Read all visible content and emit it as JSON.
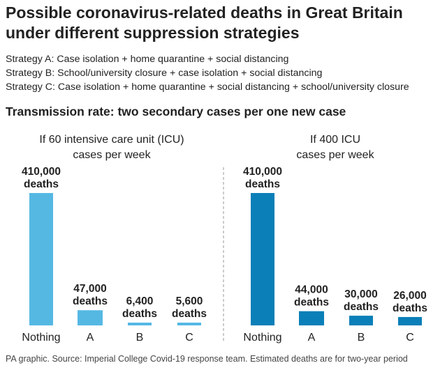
{
  "title_line1": "Possible coronavirus-related deaths in Great Britain",
  "title_line2": "under different suppression strategies",
  "strategies": [
    "Strategy A: Case isolation + home quarantine + social distancing",
    "Strategy B: School/university closure + case isolation + social distancing",
    "Strategy C: Case isolation + home quarantine + social distancing + school/university closure"
  ],
  "subtitle": "Transmission rate: two secondary cases per one new case",
  "footer": "PA graphic. Source: Imperial College Covid-19 response team. Estimated deaths are for two-year period",
  "chart_data": [
    {
      "type": "bar",
      "title_lines": [
        "If 60 intensive care unit (ICU)",
        "cases per week"
      ],
      "categories": [
        "Nothing",
        "A",
        "B",
        "C"
      ],
      "values": [
        410000,
        47000,
        6400,
        5600
      ],
      "value_labels": [
        "410,000",
        "47,000",
        "6,400",
        "5,600"
      ],
      "unit_label": "deaths",
      "color": "#55b8e3",
      "ylim": [
        0,
        410000
      ]
    },
    {
      "type": "bar",
      "title_lines": [
        "If 400 ICU",
        "cases per week"
      ],
      "categories": [
        "Nothing",
        "A",
        "B",
        "C"
      ],
      "values": [
        410000,
        44000,
        30000,
        26000
      ],
      "value_labels": [
        "410,000",
        "44,000",
        "30,000",
        "26,000"
      ],
      "unit_label": "deaths",
      "color": "#0b7fb8",
      "ylim": [
        0,
        410000
      ]
    }
  ]
}
